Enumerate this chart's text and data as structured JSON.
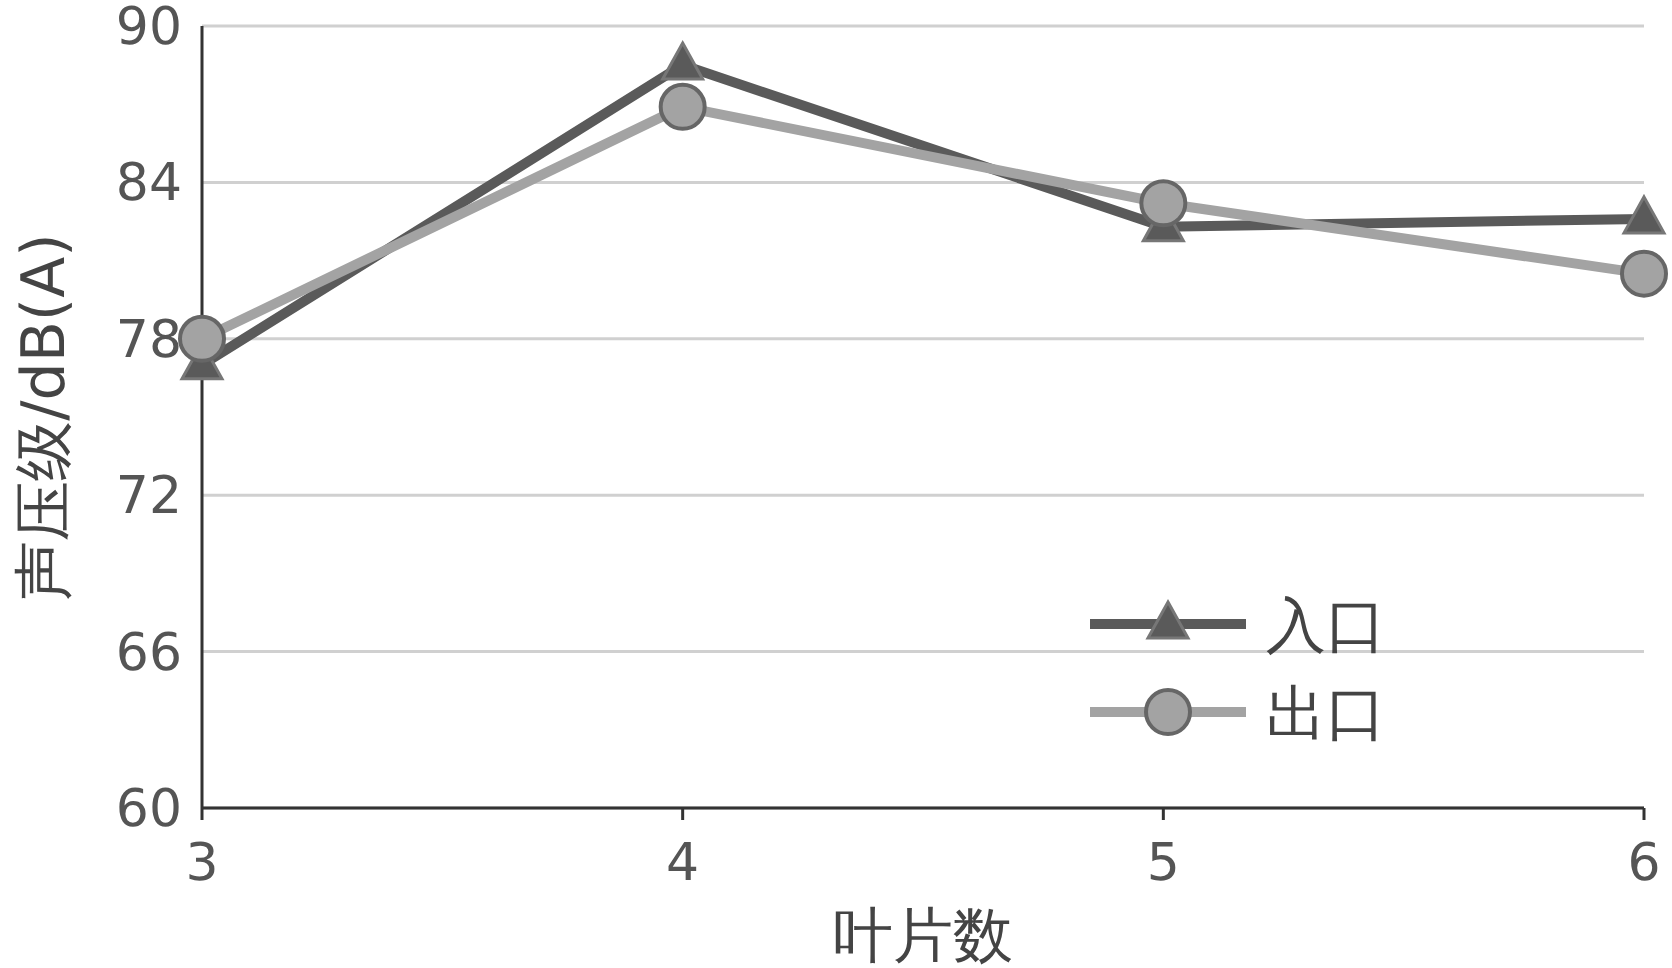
{
  "chart_data": {
    "type": "line",
    "xlabel": "叶片数",
    "ylabel": "声压级/dB(A)",
    "x": [
      3,
      4,
      5,
      6
    ],
    "series": [
      {
        "name": "入口",
        "color": "#5a5a5a",
        "marker": "triangle",
        "values": [
          77.0,
          88.5,
          82.3,
          82.6
        ]
      },
      {
        "name": "出口",
        "color": "#a3a3a3",
        "marker": "circle",
        "values": [
          78.0,
          86.9,
          83.2,
          80.5
        ]
      }
    ],
    "xlim": [
      3,
      6
    ],
    "xticks": [
      3,
      4,
      5,
      6
    ],
    "ylim": [
      60,
      90
    ],
    "yticks": [
      60,
      66,
      72,
      78,
      84,
      90
    ],
    "grid": "y",
    "legend": "bottom right"
  }
}
